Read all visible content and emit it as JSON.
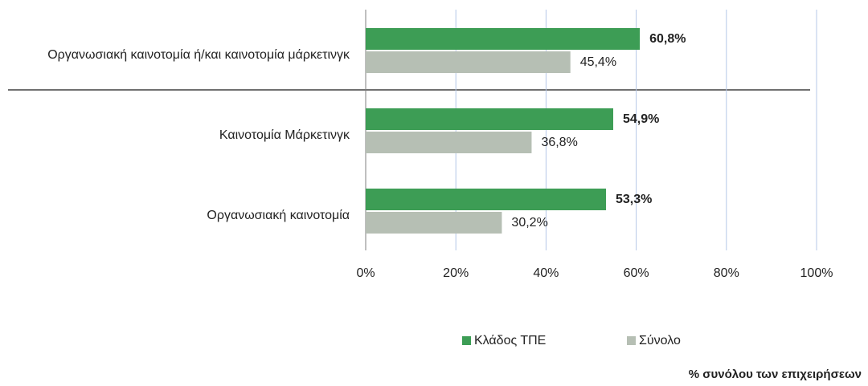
{
  "chart_data": {
    "type": "bar",
    "orientation": "horizontal",
    "categories": [
      "Οργανωσιακή καινοτομία ή/και καινοτομία μάρκετινγκ",
      "Καινοτομία Μάρκετινγκ",
      "Οργανωσιακή καινοτομία"
    ],
    "series": [
      {
        "name": "Κλάδος ΤΠΕ",
        "color": "#3d9d55",
        "values": [
          60.8,
          54.9,
          53.3
        ],
        "value_labels": [
          "60,8%",
          "54,9%",
          "53,3%"
        ]
      },
      {
        "name": "Σύνολο",
        "color": "#b6bfb4",
        "values": [
          45.4,
          36.8,
          30.2
        ],
        "value_labels": [
          "45,4%",
          "36,8%",
          "30,2%"
        ]
      }
    ],
    "xlim": [
      0,
      100
    ],
    "xticks": [
      {
        "value": 0,
        "label": "0%"
      },
      {
        "value": 20,
        "label": "20%"
      },
      {
        "value": 40,
        "label": "40%"
      },
      {
        "value": 60,
        "label": "60%"
      },
      {
        "value": 80,
        "label": "80%"
      },
      {
        "value": 100,
        "label": "100%"
      }
    ],
    "grid": true,
    "legend": "bottom",
    "note": "% συνόλου των επιχειρήσεων"
  }
}
